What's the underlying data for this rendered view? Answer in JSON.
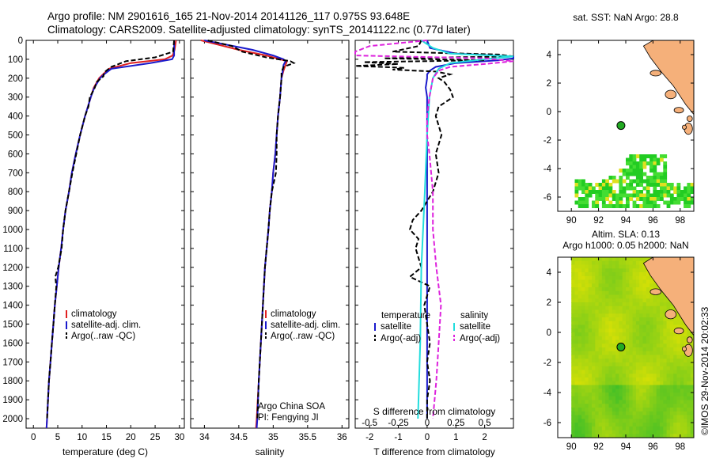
{
  "header": {
    "line1": "Argo profile: NM 2901616_165 21-Nov-2014 20141126_117 0.975S 93.648E",
    "line2": "Climatology: CARS2009. Satellite-adjusted climatology: synTS_20141122.nc (0.77d later)"
  },
  "colors": {
    "climatology": "#e02020",
    "satellite": "#1a1acc",
    "argo": "#000000",
    "sal_satellite": "#22dddd",
    "sal_argo": "#dd22dd",
    "land": "#f5b07a",
    "marker": "#22aa22"
  },
  "depth_axis": {
    "ticks": [
      0,
      100,
      200,
      300,
      400,
      500,
      600,
      700,
      800,
      900,
      1000,
      1100,
      1200,
      1300,
      1400,
      1500,
      1600,
      1700,
      1800,
      1900,
      2000
    ],
    "ylim": [
      0,
      2050
    ],
    "inverted": true
  },
  "chart_data": [
    {
      "id": "temperature",
      "type": "line",
      "xlabel": "temperature (deg C)",
      "xlim": [
        -1.5,
        31
      ],
      "xticks": [
        0,
        5,
        10,
        15,
        20,
        25,
        30
      ],
      "legend": {
        "placement": "bottom",
        "entries": [
          "climatology",
          "satellite-adj. clim.",
          "Argo(..raw -QC)"
        ]
      },
      "series": [
        {
          "name": "climatology",
          "depth": [
            0,
            50,
            80,
            100,
            120,
            150,
            180,
            200,
            250,
            300,
            400,
            500,
            600,
            700,
            800,
            900,
            1000,
            1100,
            1200,
            1300,
            1400,
            1500,
            1600,
            1700,
            1800,
            1900,
            2000,
            2050
          ],
          "values": [
            29.3,
            29.0,
            28.6,
            27.0,
            20,
            15.5,
            14.3,
            13.5,
            12.4,
            11.8,
            10.6,
            9.6,
            8.7,
            7.9,
            7.3,
            6.6,
            6.1,
            5.7,
            5.2,
            4.8,
            4.4,
            4.1,
            3.8,
            3.5,
            3.2,
            3.0,
            2.8,
            2.7
          ]
        },
        {
          "name": "satellite-adj. clim.",
          "depth": [
            0,
            50,
            80,
            100,
            120,
            150,
            180,
            200,
            250,
            300,
            400,
            500,
            600,
            700,
            800,
            900,
            1000,
            1100,
            1200,
            1300,
            1400,
            1500,
            1600,
            1700,
            1800,
            1900,
            2000,
            2050
          ],
          "values": [
            28.9,
            28.9,
            28.9,
            28.5,
            24,
            16,
            14.5,
            13.7,
            12.5,
            11.8,
            10.6,
            9.6,
            8.7,
            7.9,
            7.3,
            6.6,
            6.1,
            5.7,
            5.2,
            4.8,
            4.4,
            4.1,
            3.8,
            3.5,
            3.2,
            3.0,
            2.8,
            2.7
          ]
        },
        {
          "name": "Argo(..raw -QC)",
          "depth": [
            0,
            60,
            90,
            110,
            140,
            170,
            190,
            220,
            250,
            300,
            350,
            400,
            500,
            600,
            700,
            800,
            900,
            1000,
            1100,
            1200,
            1250,
            1300,
            1400,
            1500,
            1600,
            1700,
            1800,
            1900,
            2000
          ],
          "values": [
            28.9,
            28.7,
            25.0,
            19.0,
            16.0,
            14.5,
            14.4,
            13.0,
            12.6,
            11.6,
            11.3,
            10.6,
            9.6,
            8.8,
            8.0,
            7.3,
            6.6,
            6.1,
            5.8,
            5.1,
            4.5,
            4.7,
            4.4,
            4.1,
            3.8,
            3.5,
            3.2,
            3.0,
            2.8
          ]
        }
      ]
    },
    {
      "id": "salinity",
      "type": "line",
      "xlabel": "salinity",
      "xlim": [
        33.8,
        36.1
      ],
      "xticks": [
        34,
        34.5,
        35,
        35.5,
        36
      ],
      "legend": {
        "placement": "bottom",
        "entries": [
          "climatology",
          "satellite-adj. clim.",
          "Argo(..raw -QC)"
        ]
      },
      "annotation": [
        "Argo China SOA",
        "PI: Fengying JI"
      ],
      "series": [
        {
          "name": "climatology",
          "depth": [
            0,
            50,
            80,
            100,
            110,
            130,
            160,
            200,
            300,
            400,
            500,
            600,
            700,
            800,
            900,
            1000,
            1200,
            1400,
            1600,
            1800,
            2000,
            2050
          ],
          "values": [
            33.95,
            34.5,
            34.9,
            35.1,
            35.2,
            35.18,
            35.15,
            35.12,
            35.1,
            35.07,
            35.05,
            35.03,
            35.0,
            34.98,
            34.95,
            34.93,
            34.88,
            34.85,
            34.82,
            34.79,
            34.76,
            34.75
          ]
        },
        {
          "name": "satellite-adj. clim.",
          "depth": [
            0,
            50,
            80,
            100,
            110,
            130,
            160,
            200,
            300,
            400,
            500,
            600,
            700,
            800,
            900,
            1000,
            1200,
            1400,
            1600,
            1800,
            2000,
            2050
          ],
          "values": [
            34.0,
            34.7,
            35.0,
            35.15,
            35.18,
            35.15,
            35.14,
            35.12,
            35.1,
            35.07,
            35.05,
            35.03,
            35.0,
            34.98,
            34.95,
            34.93,
            34.88,
            34.85,
            34.82,
            34.79,
            34.77,
            34.76
          ]
        },
        {
          "name": "Argo(..raw -QC)",
          "depth": [
            0,
            30,
            60,
            90,
            110,
            120,
            140,
            170,
            200,
            300,
            400,
            500,
            600,
            700,
            800,
            900,
            1000,
            1200,
            1400,
            1600,
            1800,
            2000
          ],
          "values": [
            34.05,
            34.4,
            34.55,
            34.9,
            35.25,
            35.3,
            35.15,
            35.12,
            35.12,
            35.1,
            35.07,
            35.05,
            35.05,
            35.04,
            34.98,
            34.95,
            34.93,
            34.88,
            34.85,
            34.82,
            34.79,
            34.77
          ]
        }
      ]
    },
    {
      "id": "difference",
      "type": "line",
      "xlabel": "T difference from climatology",
      "xlabel_top": "S difference from climatology",
      "xlim": [
        -2.5,
        3
      ],
      "xticks": [
        -2,
        -1,
        0,
        1,
        2
      ],
      "xticks_top": [
        "-0.5",
        "-0.25",
        "0",
        "0.25",
        "0.5"
      ],
      "legend": {
        "placement": "bottom",
        "groups": [
          "temperature",
          "salinity"
        ],
        "entries": [
          "satellite",
          "Argo(-adj)",
          "satellite",
          "Argo(-adj)"
        ]
      },
      "series": [
        {
          "name": "temperature satellite",
          "depth": [
            0,
            40,
            70,
            85,
            95,
            105,
            120,
            140,
            160,
            180,
            200,
            250,
            300,
            400,
            600,
            800,
            1000,
            1500,
            2000
          ],
          "values": [
            0.0,
            0.1,
            1.0,
            3.0,
            3.5,
            2.5,
            1.0,
            0.3,
            0.1,
            0.0,
            0.0,
            -0.05,
            0.0,
            0.0,
            0.0,
            0.0,
            0.0,
            0.0,
            0.0
          ]
        },
        {
          "name": "temperature Argo(-adj)",
          "depth": [
            0,
            30,
            60,
            75,
            85,
            95,
            105,
            115,
            125,
            135,
            145,
            155,
            165,
            180,
            200,
            220,
            260,
            300,
            320,
            350,
            400,
            500,
            600,
            700,
            800,
            900,
            950,
            1000,
            1050,
            1100,
            1200,
            1250,
            1300,
            1400,
            1500,
            1600,
            1700,
            1800,
            1900,
            2000
          ],
          "values": [
            -0.2,
            -0.3,
            -1.2,
            2.5,
            3.0,
            -1.5,
            2.0,
            -2.2,
            -1.0,
            -2.5,
            -0.8,
            -1.2,
            0.3,
            0.8,
            0.4,
            0.6,
            0.8,
            0.9,
            0.7,
            0.4,
            0.3,
            0.5,
            0.3,
            0.4,
            0.2,
            -0.2,
            -0.5,
            -0.6,
            -0.3,
            -0.4,
            -0.2,
            -0.6,
            0.1,
            -0.1,
            0.0,
            0.1,
            0.0,
            0.1,
            0.0,
            0.0
          ]
        },
        {
          "name": "salinity satellite",
          "depth": [
            0,
            40,
            70,
            85,
            100,
            120,
            150,
            200,
            300,
            500,
            800,
            1200,
            1600,
            2000
          ],
          "values": [
            -0.05,
            0.05,
            0.2,
            0.8,
            0.5,
            0.2,
            0.1,
            0.05,
            0.02,
            0.0,
            -0.02,
            -0.05,
            -0.06,
            -0.08
          ]
        },
        {
          "name": "salinity Argo(-adj)",
          "depth": [
            0,
            30,
            60,
            80,
            95,
            110,
            125,
            140,
            160,
            200,
            300,
            400,
            500,
            600,
            800,
            1000,
            1200,
            1400,
            1600,
            1800,
            2000
          ],
          "values": [
            0.0,
            -0.5,
            -1.5,
            -1.2,
            0.5,
            1.5,
            0.5,
            0.2,
            0.1,
            0.05,
            0.02,
            0.0,
            0.0,
            0.02,
            0.05,
            0.05,
            0.08,
            0.12,
            0.1,
            0.08,
            0.05
          ]
        }
      ]
    },
    {
      "id": "sst_map",
      "type": "heatmap",
      "title": "sat. SST: NaN Argo: 28.8",
      "xlim": [
        89,
        99
      ],
      "ylim": [
        -7,
        5
      ],
      "xticks": [
        90,
        92,
        94,
        96,
        98
      ],
      "yticks": [
        -6,
        -4,
        -2,
        0,
        2,
        4
      ],
      "marker": {
        "lon": 93.648,
        "lat": -0.975
      }
    },
    {
      "id": "sla_map",
      "type": "heatmap",
      "title_lines": [
        "Altim. SLA: 0.13",
        "Argo h1000: 0.05 h2000: NaN"
      ],
      "xlim": [
        89,
        99
      ],
      "ylim": [
        -7,
        5
      ],
      "xticks": [
        90,
        92,
        94,
        96,
        98
      ],
      "yticks": [
        -6,
        -4,
        -2,
        0,
        2,
        4
      ],
      "marker": {
        "lon": 93.648,
        "lat": -0.975
      }
    }
  ],
  "footer": {
    "stamp": "©IMOS 29-Nov-2014 20:02:33"
  }
}
